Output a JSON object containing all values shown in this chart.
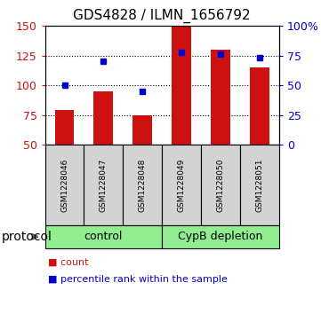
{
  "title": "GDS4828 / ILMN_1656792",
  "samples": [
    "GSM1228046",
    "GSM1228047",
    "GSM1228048",
    "GSM1228049",
    "GSM1228050",
    "GSM1228051"
  ],
  "counts": [
    79,
    95,
    75,
    150,
    130,
    115
  ],
  "percentiles": [
    50,
    70,
    45,
    78,
    76,
    73
  ],
  "bar_color": "#cc1111",
  "dot_color": "#0000cc",
  "left_ylim": [
    50,
    150
  ],
  "right_ylim": [
    0,
    100
  ],
  "left_yticks": [
    50,
    75,
    100,
    125,
    150
  ],
  "right_yticks": [
    0,
    25,
    50,
    75,
    100
  ],
  "right_yticklabels": [
    "0",
    "25",
    "50",
    "75",
    "100%"
  ],
  "gridlines": [
    75,
    100,
    125
  ],
  "protocol_label": "protocol",
  "legend_count_label": "count",
  "legend_pct_label": "percentile rank within the sample",
  "bar_width": 0.5,
  "fig_bg": "#ffffff",
  "gray_box_color": "#d3d3d3",
  "green_box_color": "#90ee90",
  "title_fontsize": 11,
  "tick_fontsize": 9,
  "sample_fontsize": 6.5,
  "group_fontsize": 9,
  "legend_fontsize": 8,
  "protocol_fontsize": 10
}
